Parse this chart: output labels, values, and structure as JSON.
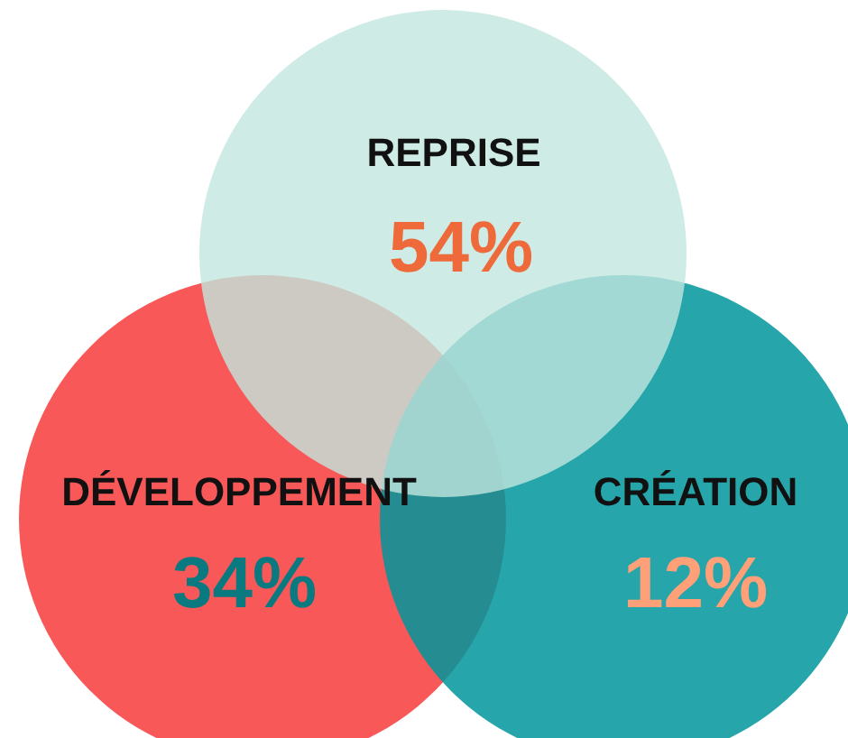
{
  "chart_data": {
    "type": "other",
    "categories": [
      "REPRISE",
      "DÉVELOPPEMENT",
      "CRÉATION"
    ],
    "values": [
      54,
      34,
      12
    ],
    "value_labels": [
      "54%",
      "34%",
      "12%"
    ],
    "colors": [
      "#c2e6df",
      "#f95858",
      "#00979c"
    ]
  }
}
